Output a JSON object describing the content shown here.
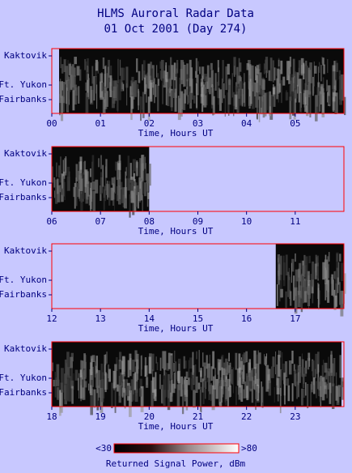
{
  "title": "HLMS Auroral Radar Data",
  "subtitle": "01 Oct 2001 (Day 274)",
  "chart_data": [
    {
      "type": "radar-strip",
      "x_label": "Time, Hours UT",
      "y_categories": [
        "Kaktovik",
        "Ft. Yukon",
        "Fairbanks"
      ],
      "xlim": [
        0,
        6
      ],
      "xticks": [
        {
          "value": 0,
          "label": "00"
        },
        {
          "value": 1,
          "label": "01"
        },
        {
          "value": 2,
          "label": "02"
        },
        {
          "value": 3,
          "label": "03"
        },
        {
          "value": 4,
          "label": "04"
        },
        {
          "value": 5,
          "label": "05"
        }
      ],
      "coverage": [
        0.15,
        6
      ]
    },
    {
      "type": "radar-strip",
      "x_label": "Time, Hours UT",
      "y_categories": [
        "Kaktovik",
        "Ft. Yukon",
        "Fairbanks"
      ],
      "xlim": [
        6,
        12
      ],
      "xticks": [
        {
          "value": 6,
          "label": "06"
        },
        {
          "value": 7,
          "label": "07"
        },
        {
          "value": 8,
          "label": "08"
        },
        {
          "value": 9,
          "label": "09"
        },
        10,
        11
      ],
      "coverage": [
        6,
        8
      ]
    },
    {
      "type": "radar-strip",
      "x_label": "Time, Hours UT",
      "y_categories": [
        "Kaktovik",
        "Ft. Yukon",
        "Fairbanks"
      ],
      "xlim": [
        12,
        18
      ],
      "xticks": [
        12,
        13,
        14,
        15,
        16,
        17
      ],
      "coverage": [
        16.6,
        18
      ]
    },
    {
      "type": "radar-strip",
      "x_label": "Time, Hours UT",
      "y_categories": [
        "Kaktovik",
        "Ft. Yukon",
        "Fairbanks"
      ],
      "xlim": [
        18,
        24
      ],
      "xticks": [
        18,
        19,
        20,
        21,
        22,
        23
      ],
      "coverage": [
        18,
        23.95
      ]
    }
  ],
  "colorbar": {
    "min": {
      "value": 30,
      "label": "<30"
    },
    "max": {
      "value": 80,
      "label": ">80"
    },
    "label": "Returned Signal Power, dBm"
  }
}
